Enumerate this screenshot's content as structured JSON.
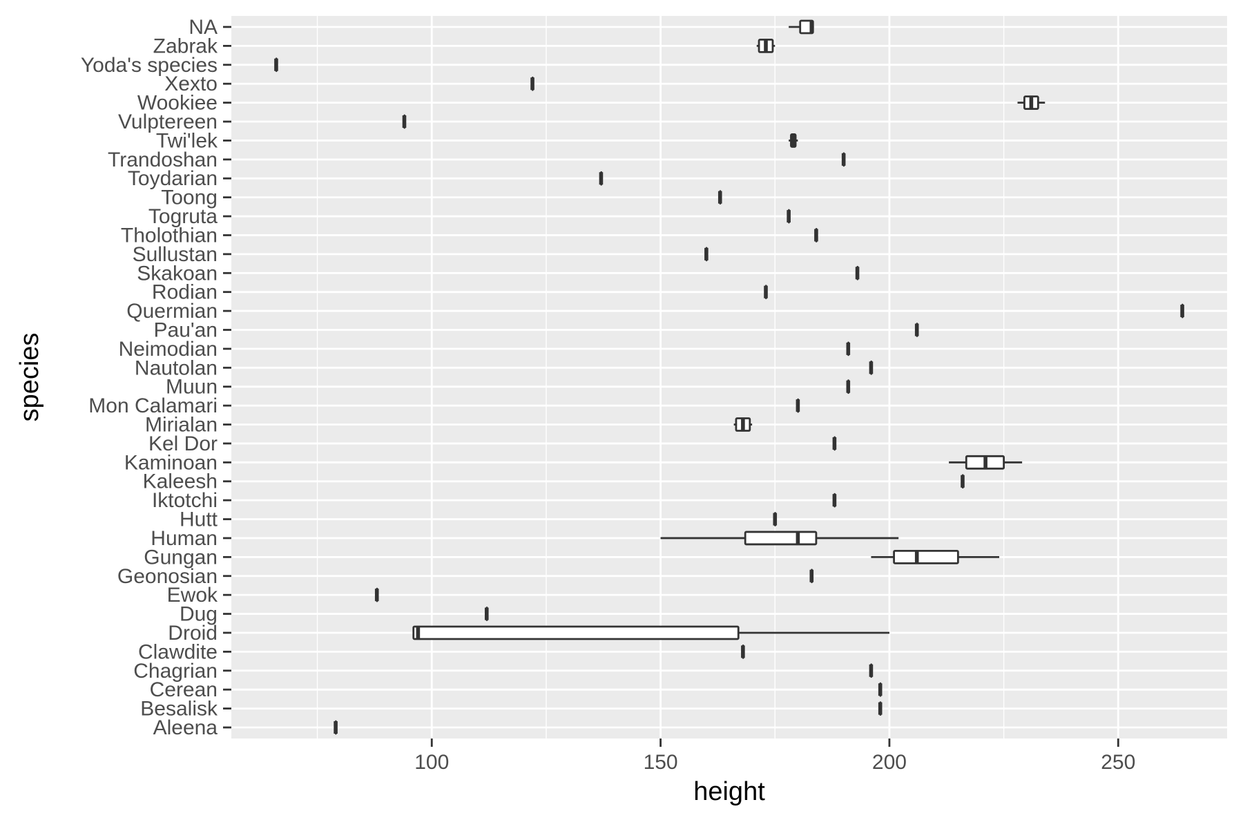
{
  "chart_data": {
    "type": "boxplot",
    "orientation": "horizontal",
    "title": "",
    "xlabel": "height",
    "ylabel": "species",
    "xlim": [
      56.2,
      273.8
    ],
    "x_ticks": [
      100,
      150,
      200,
      250
    ],
    "x_minor_ticks": [
      75,
      125,
      175,
      225
    ],
    "grid": true,
    "legend": "none",
    "categories": [
      "NA",
      "Zabrak",
      "Yoda's species",
      "Xexto",
      "Wookiee",
      "Vulptereen",
      "Twi'lek",
      "Trandoshan",
      "Toydarian",
      "Toong",
      "Togruta",
      "Tholothian",
      "Sullustan",
      "Skakoan",
      "Rodian",
      "Quermian",
      "Pau'an",
      "Neimodian",
      "Nautolan",
      "Muun",
      "Mon Calamari",
      "Mirialan",
      "Kel Dor",
      "Kaminoan",
      "Kaleesh",
      "Iktotchi",
      "Hutt",
      "Human",
      "Gungan",
      "Geonosian",
      "Ewok",
      "Dug",
      "Droid",
      "Clawdite",
      "Chagrian",
      "Cerean",
      "Besalisk",
      "Aleena"
    ],
    "boxes": [
      {
        "species": "NA",
        "min": 178,
        "q1": 180.5,
        "median": 183,
        "q3": 183.3,
        "max": 183.5
      },
      {
        "species": "Zabrak",
        "min": 171,
        "q1": 171.5,
        "median": 173,
        "q3": 174.5,
        "max": 175
      },
      {
        "species": "Yoda's species",
        "min": 66,
        "q1": 66,
        "median": 66,
        "q3": 66,
        "max": 66
      },
      {
        "species": "Xexto",
        "min": 122,
        "q1": 122,
        "median": 122,
        "q3": 122,
        "max": 122
      },
      {
        "species": "Wookiee",
        "min": 228,
        "q1": 229.5,
        "median": 231,
        "q3": 232.5,
        "max": 234
      },
      {
        "species": "Vulptereen",
        "min": 94,
        "q1": 94,
        "median": 94,
        "q3": 94,
        "max": 94
      },
      {
        "species": "Twi'lek",
        "min": 178,
        "q1": 178.5,
        "median": 179,
        "q3": 179.5,
        "max": 180
      },
      {
        "species": "Trandoshan",
        "min": 190,
        "q1": 190,
        "median": 190,
        "q3": 190,
        "max": 190
      },
      {
        "species": "Toydarian",
        "min": 137,
        "q1": 137,
        "median": 137,
        "q3": 137,
        "max": 137
      },
      {
        "species": "Toong",
        "min": 163,
        "q1": 163,
        "median": 163,
        "q3": 163,
        "max": 163
      },
      {
        "species": "Togruta",
        "min": 178,
        "q1": 178,
        "median": 178,
        "q3": 178,
        "max": 178
      },
      {
        "species": "Tholothian",
        "min": 184,
        "q1": 184,
        "median": 184,
        "q3": 184,
        "max": 184
      },
      {
        "species": "Sullustan",
        "min": 160,
        "q1": 160,
        "median": 160,
        "q3": 160,
        "max": 160
      },
      {
        "species": "Skakoan",
        "min": 193,
        "q1": 193,
        "median": 193,
        "q3": 193,
        "max": 193
      },
      {
        "species": "Rodian",
        "min": 173,
        "q1": 173,
        "median": 173,
        "q3": 173,
        "max": 173
      },
      {
        "species": "Quermian",
        "min": 264,
        "q1": 264,
        "median": 264,
        "q3": 264,
        "max": 264
      },
      {
        "species": "Pau'an",
        "min": 206,
        "q1": 206,
        "median": 206,
        "q3": 206,
        "max": 206
      },
      {
        "species": "Neimodian",
        "min": 191,
        "q1": 191,
        "median": 191,
        "q3": 191,
        "max": 191
      },
      {
        "species": "Nautolan",
        "min": 196,
        "q1": 196,
        "median": 196,
        "q3": 196,
        "max": 196
      },
      {
        "species": "Muun",
        "min": 191,
        "q1": 191,
        "median": 191,
        "q3": 191,
        "max": 191
      },
      {
        "species": "Mon Calamari",
        "min": 180,
        "q1": 180,
        "median": 180,
        "q3": 180,
        "max": 180
      },
      {
        "species": "Mirialan",
        "min": 166,
        "q1": 166.5,
        "median": 168,
        "q3": 169.5,
        "max": 170
      },
      {
        "species": "Kel Dor",
        "min": 188,
        "q1": 188,
        "median": 188,
        "q3": 188,
        "max": 188
      },
      {
        "species": "Kaminoan",
        "min": 213,
        "q1": 216.8,
        "median": 221,
        "q3": 225,
        "max": 229
      },
      {
        "species": "Kaleesh",
        "min": 216,
        "q1": 216,
        "median": 216,
        "q3": 216,
        "max": 216
      },
      {
        "species": "Iktotchi",
        "min": 188,
        "q1": 188,
        "median": 188,
        "q3": 188,
        "max": 188
      },
      {
        "species": "Hutt",
        "min": 175,
        "q1": 175,
        "median": 175,
        "q3": 175,
        "max": 175
      },
      {
        "species": "Human",
        "min": 150,
        "q1": 168.5,
        "median": 180,
        "q3": 184,
        "max": 202
      },
      {
        "species": "Gungan",
        "min": 196,
        "q1": 201,
        "median": 206,
        "q3": 215,
        "max": 224
      },
      {
        "species": "Geonosian",
        "min": 183,
        "q1": 183,
        "median": 183,
        "q3": 183,
        "max": 183
      },
      {
        "species": "Ewok",
        "min": 88,
        "q1": 88,
        "median": 88,
        "q3": 88,
        "max": 88
      },
      {
        "species": "Dug",
        "min": 112,
        "q1": 112,
        "median": 112,
        "q3": 112,
        "max": 112
      },
      {
        "species": "Droid",
        "min": 96,
        "q1": 96,
        "median": 97,
        "q3": 167,
        "max": 200
      },
      {
        "species": "Clawdite",
        "min": 168,
        "q1": 168,
        "median": 168,
        "q3": 168,
        "max": 168
      },
      {
        "species": "Chagrian",
        "min": 196,
        "q1": 196,
        "median": 196,
        "q3": 196,
        "max": 196
      },
      {
        "species": "Cerean",
        "min": 198,
        "q1": 198,
        "median": 198,
        "q3": 198,
        "max": 198
      },
      {
        "species": "Besalisk",
        "min": 198,
        "q1": 198,
        "median": 198,
        "q3": 198,
        "max": 198
      },
      {
        "species": "Aleena",
        "min": 79,
        "q1": 79,
        "median": 79,
        "q3": 79,
        "max": 79
      }
    ]
  },
  "colors": {
    "panel_background": "#ebebeb",
    "gridline": "#ffffff",
    "box_line": "#333333",
    "box_fill": "#ffffff",
    "tick_label": "#4d4d4d",
    "axis_title": "#000000"
  }
}
